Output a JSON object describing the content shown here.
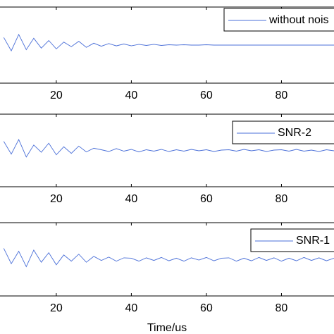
{
  "chart_data": [
    {
      "type": "line",
      "legend": "upper right",
      "x": [
        6,
        8,
        10,
        12,
        14,
        16,
        18,
        20,
        22,
        24,
        26,
        28,
        30,
        32,
        34,
        36,
        38,
        40,
        42,
        44,
        46,
        48,
        50,
        52,
        54,
        56,
        58,
        60,
        62,
        64,
        66,
        68,
        70,
        72,
        74,
        76,
        78,
        80,
        82,
        84,
        86,
        88,
        90,
        92,
        94
      ],
      "series": [
        {
          "name": "without nois",
          "color": "#4a6fd8",
          "values": [
            0.2,
            -0.15,
            0.28,
            -0.12,
            0.18,
            -0.08,
            0.12,
            -0.1,
            0.08,
            -0.04,
            0.1,
            -0.06,
            0.05,
            -0.03,
            0.04,
            -0.02,
            0.03,
            -0.02,
            0.02,
            -0.01,
            0.02,
            -0.01,
            0.01,
            0,
            0.01,
            0,
            0,
            0.01,
            0,
            0,
            0,
            0,
            0,
            0,
            0,
            0,
            0,
            0,
            0,
            0,
            0,
            0,
            0,
            0,
            0
          ]
        }
      ],
      "xlim": [
        5,
        94
      ],
      "ylim": [
        -1,
        1
      ],
      "xticks": [
        20,
        40,
        60,
        80
      ]
    },
    {
      "type": "line",
      "legend": "upper right",
      "x": [
        6,
        8,
        10,
        12,
        14,
        16,
        18,
        20,
        22,
        24,
        26,
        28,
        30,
        32,
        34,
        36,
        38,
        40,
        42,
        44,
        46,
        48,
        50,
        52,
        54,
        56,
        58,
        60,
        62,
        64,
        66,
        68,
        70,
        72,
        74,
        76,
        78,
        80,
        82,
        84,
        86,
        88,
        90,
        92,
        94
      ],
      "series": [
        {
          "name": "SNR-2",
          "color": "#4a6fd8",
          "values": [
            0.25,
            -0.1,
            0.3,
            -0.18,
            0.15,
            -0.05,
            0.2,
            -0.12,
            0.1,
            -0.08,
            0.12,
            -0.04,
            0.06,
            0.02,
            -0.03,
            0.05,
            -0.02,
            0.03,
            -0.04,
            0.02,
            -0.02,
            0.03,
            -0.03,
            0.02,
            -0.02,
            0.03,
            -0.01,
            0.02,
            -0.03,
            0.01,
            0.02,
            -0.02,
            0.03,
            -0.01,
            0.02,
            -0.03,
            0.01,
            0.02,
            -0.02,
            0.03,
            -0.02,
            0.01,
            -0.03,
            0.02,
            -0.01
          ]
        }
      ],
      "xlim": [
        5,
        94
      ],
      "ylim": [
        -1,
        1
      ],
      "xticks": [
        20,
        40,
        60,
        80
      ]
    },
    {
      "type": "line",
      "legend": "upper right",
      "xlabel": "Time/us",
      "x": [
        6,
        8,
        10,
        12,
        14,
        16,
        18,
        20,
        22,
        24,
        26,
        28,
        30,
        32,
        34,
        36,
        38,
        40,
        42,
        44,
        46,
        48,
        50,
        52,
        54,
        56,
        58,
        60,
        62,
        64,
        66,
        68,
        70,
        72,
        74,
        76,
        78,
        80,
        82,
        84,
        86,
        88,
        90,
        92,
        94
      ],
      "series": [
        {
          "name": "SNR-1",
          "color": "#4a6fd8",
          "values": [
            0.3,
            -0.12,
            0.22,
            -0.2,
            0.25,
            -0.08,
            0.18,
            -0.15,
            0.12,
            -0.05,
            0.14,
            -0.08,
            0.08,
            -0.03,
            0.06,
            -0.05,
            0.04,
            0.03,
            -0.05,
            0.04,
            -0.03,
            0.05,
            -0.04,
            0.03,
            -0.05,
            0.04,
            -0.02,
            0.05,
            -0.04,
            0.03,
            0.04,
            -0.05,
            0.03,
            -0.04,
            0.05,
            -0.03,
            0.04,
            -0.05,
            0.03,
            -0.04,
            0.05,
            -0.03,
            0.04,
            -0.04,
            0.03
          ]
        }
      ],
      "xlim": [
        5,
        94
      ],
      "ylim": [
        -1,
        1
      ],
      "xticks": [
        20,
        40,
        60,
        80
      ]
    }
  ]
}
